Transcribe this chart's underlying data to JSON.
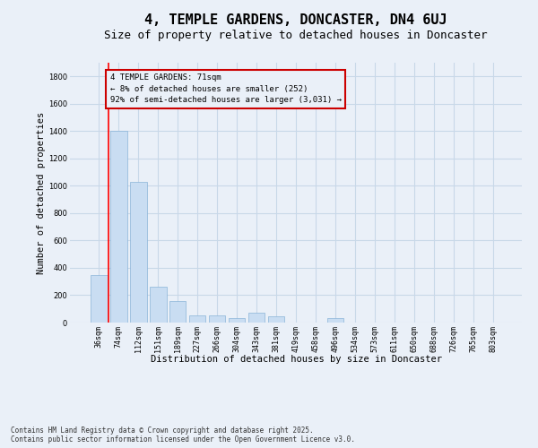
{
  "title": "4, TEMPLE GARDENS, DONCASTER, DN4 6UJ",
  "subtitle": "Size of property relative to detached houses in Doncaster",
  "xlabel": "Distribution of detached houses by size in Doncaster",
  "ylabel": "Number of detached properties",
  "categories": [
    "36sqm",
    "74sqm",
    "112sqm",
    "151sqm",
    "189sqm",
    "227sqm",
    "266sqm",
    "304sqm",
    "343sqm",
    "381sqm",
    "419sqm",
    "458sqm",
    "496sqm",
    "534sqm",
    "573sqm",
    "611sqm",
    "650sqm",
    "688sqm",
    "726sqm",
    "765sqm",
    "803sqm"
  ],
  "values": [
    350,
    1400,
    1030,
    260,
    160,
    55,
    50,
    35,
    70,
    45,
    0,
    0,
    30,
    0,
    0,
    0,
    0,
    0,
    0,
    0,
    0
  ],
  "bar_color": "#c9ddf2",
  "bar_edge_color": "#8ab4d8",
  "grid_color": "#c8d8e8",
  "background_color": "#eaf0f8",
  "annotation_text": "4 TEMPLE GARDENS: 71sqm\n← 8% of detached houses are smaller (252)\n92% of semi-detached houses are larger (3,031) →",
  "annotation_box_color": "#cc0000",
  "ylim": [
    0,
    1900
  ],
  "yticks": [
    0,
    200,
    400,
    600,
    800,
    1000,
    1200,
    1400,
    1600,
    1800
  ],
  "footer": "Contains HM Land Registry data © Crown copyright and database right 2025.\nContains public sector information licensed under the Open Government Licence v3.0.",
  "title_fontsize": 11,
  "subtitle_fontsize": 9,
  "xlabel_fontsize": 7.5,
  "ylabel_fontsize": 7.5,
  "tick_fontsize": 6,
  "annotation_fontsize": 6.5,
  "footer_fontsize": 5.5
}
